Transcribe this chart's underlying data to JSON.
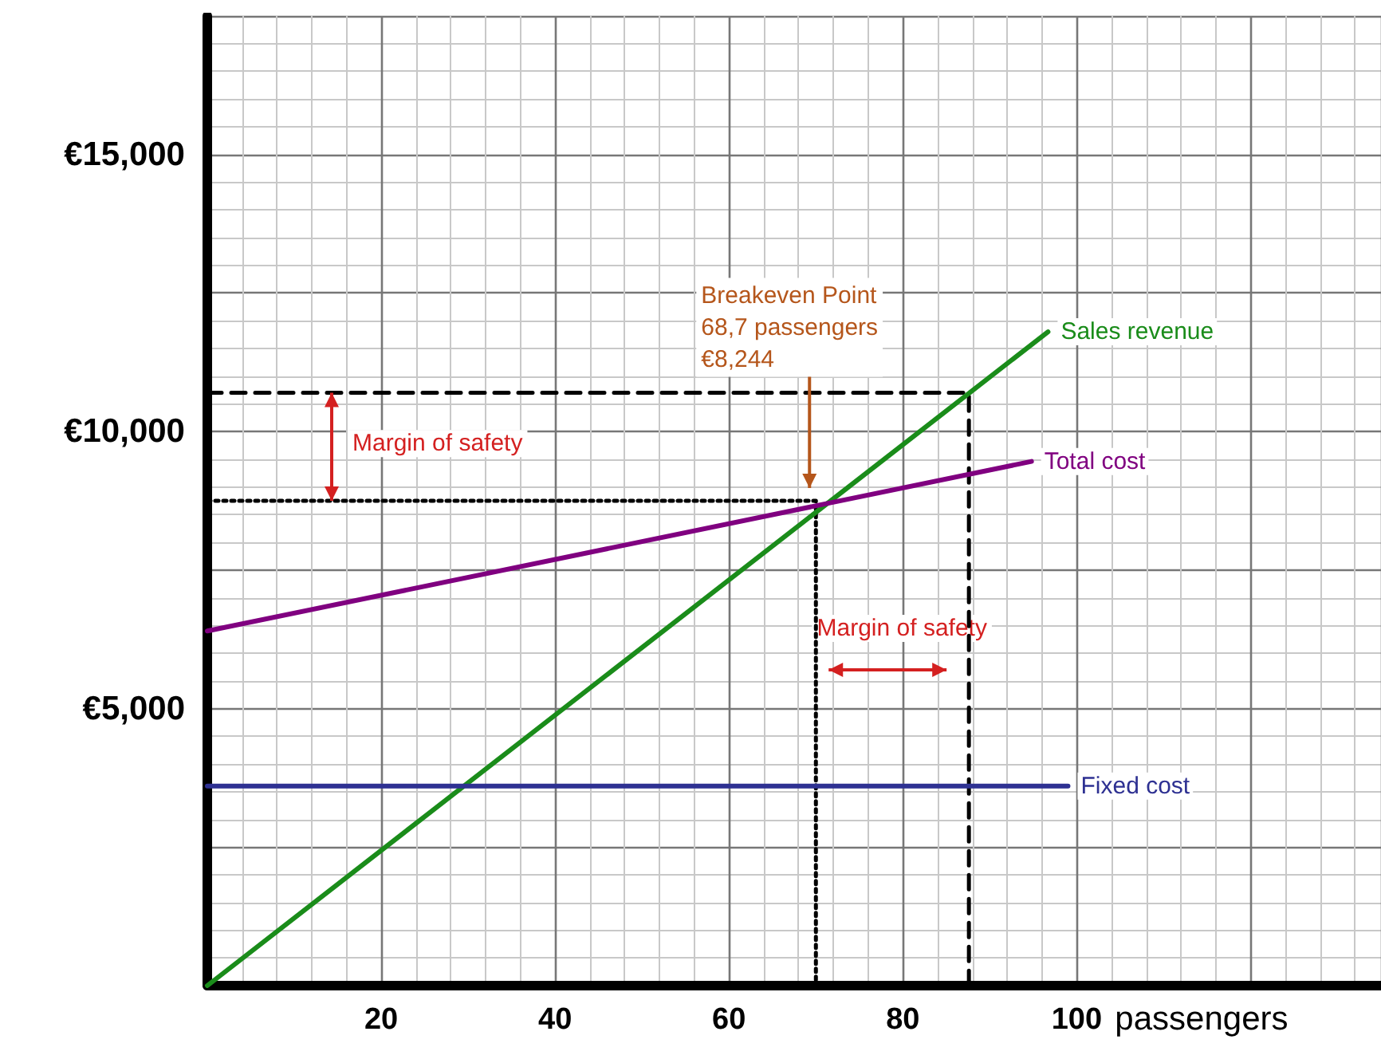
{
  "chart_data": {
    "type": "line",
    "xlabel": "passengers",
    "xlim": [
      0,
      135
    ],
    "ylim": [
      0,
      17500
    ],
    "xticks": [
      {
        "value": 0,
        "label": null
      },
      20,
      40,
      60,
      80,
      100,
      {
        "value": 120,
        "label": null
      }
    ],
    "yticks": [
      {
        "value": 0,
        "label": null
      },
      {
        "value": 2500,
        "label": null
      },
      {
        "value": 5000,
        "label": "€5,000"
      },
      {
        "value": 7500,
        "label": null
      },
      {
        "value": 10000,
        "label": "€10,000"
      },
      {
        "value": 12500,
        "label": null
      },
      {
        "value": 15000,
        "label": "€15,000"
      },
      {
        "value": 17500,
        "label": null
      }
    ],
    "grid": true,
    "marker": "none",
    "series": [
      {
        "name": "Sales revenue",
        "color": "#1a8c1a",
        "x": [
          0,
          96.7
        ],
        "values": [
          0,
          11800
        ]
      },
      {
        "name": "Total cost",
        "color": "#800080",
        "x": [
          0,
          94.8
        ],
        "values": [
          6400,
          9460
        ]
      },
      {
        "name": "Fixed cost",
        "color": "#2e3192",
        "x": [
          0,
          99
        ],
        "values": [
          3600,
          3600
        ]
      },
      {
        "color": "#000000",
        "line_style": "dashed",
        "x": [
          0,
          87.6,
          87.6
        ],
        "values": [
          10700,
          10700,
          0
        ]
      },
      {
        "color": "#000000",
        "line_style": "dotted",
        "x": [
          0,
          70,
          70
        ],
        "values": [
          8750,
          8750,
          0
        ]
      }
    ],
    "annotations": [
      "Breakeven Point\n68,7 passengers\n€8,244",
      "Margin of safety",
      "Margin of safety"
    ]
  }
}
